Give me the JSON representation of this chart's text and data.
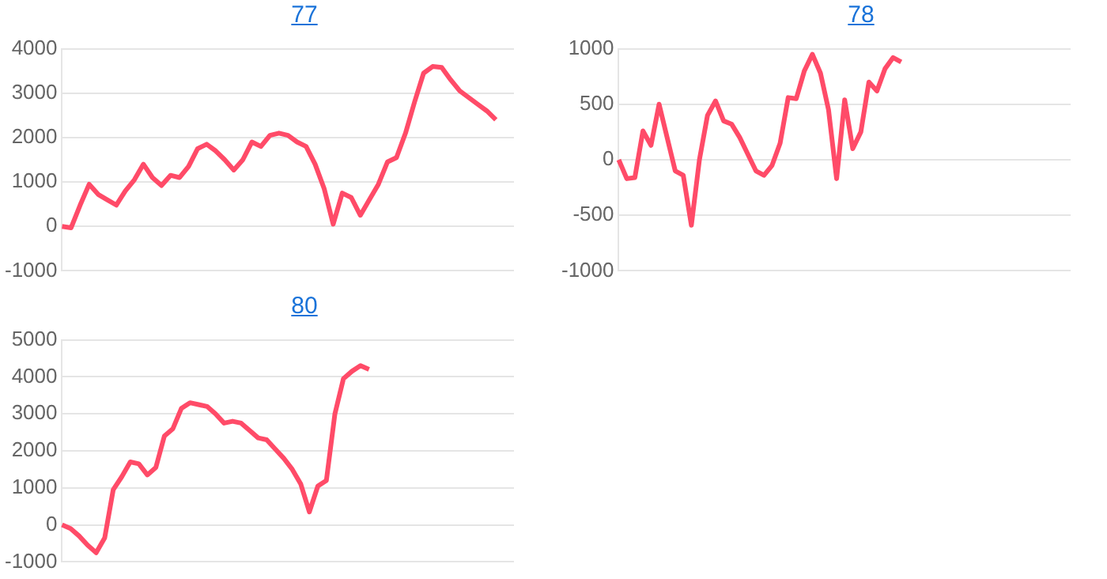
{
  "chart_data": [
    {
      "type": "line",
      "title": "77",
      "categories": [
        null,
        null,
        null,
        null,
        null,
        null,
        null,
        null,
        null,
        null,
        null,
        null,
        null,
        null,
        null,
        null,
        null,
        null,
        null,
        null,
        null,
        null,
        null,
        null,
        null,
        null,
        null,
        null,
        null,
        null,
        null,
        null,
        null,
        null,
        null,
        null,
        null,
        null,
        null,
        null,
        null,
        null,
        null,
        null,
        null,
        null,
        null,
        null,
        null,
        null,
        null
      ],
      "series": [
        {
          "color": "#ff4b68",
          "values": [
            0,
            -30,
            480,
            950,
            720,
            600,
            480,
            800,
            1050,
            1400,
            1100,
            920,
            1150,
            1100,
            1350,
            1750,
            1850,
            1700,
            1500,
            1270,
            1500,
            1900,
            1800,
            2050,
            2100,
            2050,
            1900,
            1800,
            1400,
            850,
            50,
            750,
            650,
            250,
            600,
            950,
            1450,
            1550,
            2100,
            2800,
            3450,
            3600,
            3580,
            3300,
            3050,
            2900,
            2750,
            2600,
            2400,
            null,
            null
          ]
        }
      ],
      "ylim": [
        -1000,
        4000
      ],
      "yticks": [
        -1000,
        0,
        1000,
        2000,
        3000,
        4000
      ],
      "grid": "y",
      "tick_labels": "y",
      "marker": "none",
      "line_style": "solid"
    },
    {
      "type": "line",
      "title": "78",
      "categories": [
        null,
        null,
        null,
        null,
        null,
        null,
        null,
        null,
        null,
        null,
        null,
        null,
        null,
        null,
        null,
        null,
        null,
        null,
        null,
        null,
        null,
        null,
        null,
        null,
        null,
        null,
        null,
        null,
        null,
        null,
        null,
        null,
        null,
        null,
        null,
        null,
        null,
        null,
        null,
        null,
        null,
        null,
        null,
        null,
        null,
        null,
        null,
        null,
        null,
        null,
        null,
        null,
        null,
        null,
        null,
        null,
        null
      ],
      "series": [
        {
          "color": "#ff4b68",
          "values": [
            0,
            -170,
            -160,
            260,
            130,
            500,
            200,
            -100,
            -140,
            -590,
            0,
            400,
            530,
            350,
            320,
            200,
            50,
            -100,
            -140,
            -50,
            150,
            560,
            550,
            800,
            950,
            780,
            450,
            -170,
            540,
            100,
            250,
            700,
            620,
            820,
            920,
            880,
            null,
            null,
            null,
            null,
            null,
            null,
            null,
            null,
            null,
            null,
            null,
            null,
            null,
            null,
            null,
            null,
            null,
            null,
            null,
            null,
            null
          ]
        }
      ],
      "ylim": [
        -1000,
        1000
      ],
      "yticks": [
        -1000,
        -500,
        0,
        500,
        1000
      ],
      "grid": "y",
      "tick_labels": "y",
      "marker": "none",
      "line_style": "solid"
    },
    {
      "type": "line",
      "title": "80",
      "categories": [
        null,
        null,
        null,
        null,
        null,
        null,
        null,
        null,
        null,
        null,
        null,
        null,
        null,
        null,
        null,
        null,
        null,
        null,
        null,
        null,
        null,
        null,
        null,
        null,
        null,
        null,
        null,
        null,
        null,
        null,
        null,
        null,
        null,
        null,
        null,
        null,
        null,
        null,
        null,
        null,
        null,
        null,
        null,
        null,
        null,
        null,
        null,
        null,
        null,
        null,
        null,
        null,
        null,
        null
      ],
      "series": [
        {
          "color": "#ff4b68",
          "values": [
            0,
            -100,
            -300,
            -550,
            -750,
            -350,
            950,
            1300,
            1700,
            1650,
            1350,
            1550,
            2400,
            2600,
            3150,
            3300,
            3250,
            3200,
            3000,
            2750,
            2800,
            2750,
            2550,
            2350,
            2300,
            2050,
            1800,
            1500,
            1100,
            350,
            1050,
            1200,
            3000,
            3950,
            4150,
            4300,
            4200,
            null,
            null,
            null,
            null,
            null,
            null,
            null,
            null,
            null,
            null,
            null,
            null,
            null,
            null,
            null,
            null,
            null
          ]
        }
      ],
      "ylim": [
        -1000,
        5000
      ],
      "yticks": [
        -1000,
        0,
        1000,
        2000,
        3000,
        4000,
        5000
      ],
      "grid": "y",
      "tick_labels": "y",
      "marker": "none",
      "line_style": "solid"
    }
  ]
}
